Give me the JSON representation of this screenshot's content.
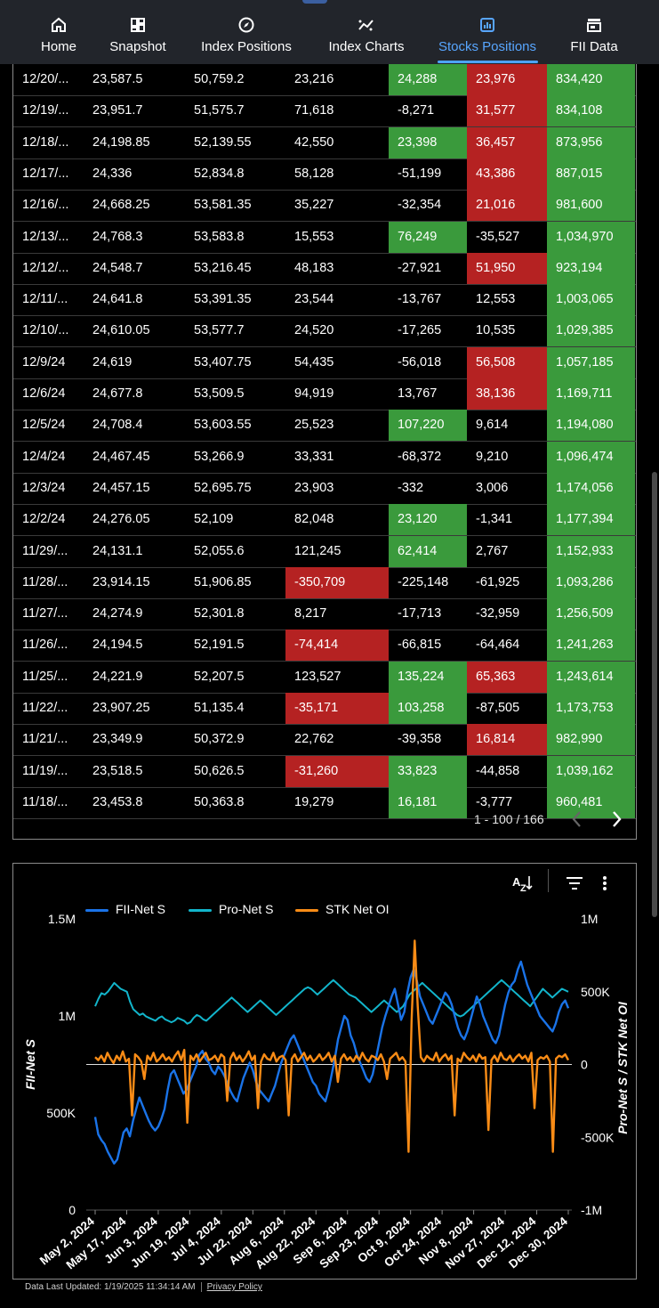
{
  "nav": [
    {
      "label": "Home",
      "icon": "home-icon"
    },
    {
      "label": "Snapshot",
      "icon": "dashboard-icon"
    },
    {
      "label": "Index Positions",
      "icon": "compass-icon"
    },
    {
      "label": "Index Charts",
      "icon": "trend-icon"
    },
    {
      "label": "Stocks Positions",
      "icon": "bar-chart-icon",
      "active": true
    },
    {
      "label": "FII Data",
      "icon": "store-icon"
    }
  ],
  "table": {
    "rows": [
      {
        "c": [
          "12/20/...",
          "23,587.5",
          "50,759.2",
          "23,216",
          "24,288",
          "23,976",
          "834,420"
        ],
        "bg": [
          "",
          "",
          "",
          "",
          "g",
          "r",
          "g"
        ]
      },
      {
        "c": [
          "12/19/...",
          "23,951.7",
          "51,575.7",
          "71,618",
          "-8,271",
          "31,577",
          "834,108"
        ],
        "bg": [
          "",
          "",
          "",
          "",
          "",
          "r",
          "g"
        ]
      },
      {
        "c": [
          "12/18/...",
          "24,198.85",
          "52,139.55",
          "42,550",
          "23,398",
          "36,457",
          "873,956"
        ],
        "bg": [
          "",
          "",
          "",
          "",
          "g",
          "r",
          "g"
        ]
      },
      {
        "c": [
          "12/17/...",
          "24,336",
          "52,834.8",
          "58,128",
          "-51,199",
          "43,386",
          "887,015"
        ],
        "bg": [
          "",
          "",
          "",
          "",
          "",
          "r",
          "g"
        ]
      },
      {
        "c": [
          "12/16/...",
          "24,668.25",
          "53,581.35",
          "35,227",
          "-32,354",
          "21,016",
          "981,600"
        ],
        "bg": [
          "",
          "",
          "",
          "",
          "",
          "r",
          "g"
        ]
      },
      {
        "c": [
          "12/13/...",
          "24,768.3",
          "53,583.8",
          "15,553",
          "76,249",
          "-35,527",
          "1,034,970"
        ],
        "bg": [
          "",
          "",
          "",
          "",
          "g",
          "",
          "g"
        ]
      },
      {
        "c": [
          "12/12/...",
          "24,548.7",
          "53,216.45",
          "48,183",
          "-27,921",
          "51,950",
          "923,194"
        ],
        "bg": [
          "",
          "",
          "",
          "",
          "",
          "r",
          "g"
        ]
      },
      {
        "c": [
          "12/11/...",
          "24,641.8",
          "53,391.35",
          "23,544",
          "-13,767",
          "12,553",
          "1,003,065"
        ],
        "bg": [
          "",
          "",
          "",
          "",
          "",
          "",
          "g"
        ]
      },
      {
        "c": [
          "12/10/...",
          "24,610.05",
          "53,577.7",
          "24,520",
          "-17,265",
          "10,535",
          "1,029,385"
        ],
        "bg": [
          "",
          "",
          "",
          "",
          "",
          "",
          "g"
        ]
      },
      {
        "c": [
          "12/9/24",
          "24,619",
          "53,407.75",
          "54,435",
          "-56,018",
          "56,508",
          "1,057,185"
        ],
        "bg": [
          "",
          "",
          "",
          "",
          "",
          "r",
          "g"
        ]
      },
      {
        "c": [
          "12/6/24",
          "24,677.8",
          "53,509.5",
          "94,919",
          "13,767",
          "38,136",
          "1,169,711"
        ],
        "bg": [
          "",
          "",
          "",
          "",
          "",
          "r",
          "g"
        ]
      },
      {
        "c": [
          "12/5/24",
          "24,708.4",
          "53,603.55",
          "25,523",
          "107,220",
          "9,614",
          "1,194,080"
        ],
        "bg": [
          "",
          "",
          "",
          "",
          "g",
          "",
          "g"
        ]
      },
      {
        "c": [
          "12/4/24",
          "24,467.45",
          "53,266.9",
          "33,331",
          "-68,372",
          "9,210",
          "1,096,474"
        ],
        "bg": [
          "",
          "",
          "",
          "",
          "",
          "",
          "g"
        ]
      },
      {
        "c": [
          "12/3/24",
          "24,457.15",
          "52,695.75",
          "23,903",
          "-332",
          "3,006",
          "1,174,056"
        ],
        "bg": [
          "",
          "",
          "",
          "",
          "",
          "",
          "g"
        ]
      },
      {
        "c": [
          "12/2/24",
          "24,276.05",
          "52,109",
          "82,048",
          "23,120",
          "-1,341",
          "1,177,394"
        ],
        "bg": [
          "",
          "",
          "",
          "",
          "g",
          "",
          "g"
        ]
      },
      {
        "c": [
          "11/29/...",
          "24,131.1",
          "52,055.6",
          "121,245",
          "62,414",
          "2,767",
          "1,152,933"
        ],
        "bg": [
          "",
          "",
          "",
          "",
          "g",
          "",
          "g"
        ]
      },
      {
        "c": [
          "11/28/...",
          "23,914.15",
          "51,906.85",
          "-350,709",
          "-225,148",
          "-61,925",
          "1,093,286"
        ],
        "bg": [
          "",
          "",
          "",
          "r",
          "",
          "",
          "g"
        ]
      },
      {
        "c": [
          "11/27/...",
          "24,274.9",
          "52,301.8",
          "8,217",
          "-17,713",
          "-32,959",
          "1,256,509"
        ],
        "bg": [
          "",
          "",
          "",
          "",
          "",
          "",
          "g"
        ]
      },
      {
        "c": [
          "11/26/...",
          "24,194.5",
          "52,191.5",
          "-74,414",
          "-66,815",
          "-64,464",
          "1,241,263"
        ],
        "bg": [
          "",
          "",
          "",
          "r",
          "",
          "",
          "g"
        ]
      },
      {
        "c": [
          "11/25/...",
          "24,221.9",
          "52,207.5",
          "123,527",
          "135,224",
          "65,363",
          "1,243,614"
        ],
        "bg": [
          "",
          "",
          "",
          "",
          "g",
          "r",
          "g"
        ]
      },
      {
        "c": [
          "11/22/...",
          "23,907.25",
          "51,135.4",
          "-35,171",
          "103,258",
          "-87,505",
          "1,173,753"
        ],
        "bg": [
          "",
          "",
          "",
          "r",
          "g",
          "",
          "g"
        ]
      },
      {
        "c": [
          "11/21/...",
          "23,349.9",
          "50,372.9",
          "22,762",
          "-39,358",
          "16,814",
          "982,990"
        ],
        "bg": [
          "",
          "",
          "",
          "",
          "",
          "r",
          "g"
        ]
      },
      {
        "c": [
          "11/19/...",
          "23,518.5",
          "50,626.5",
          "-31,260",
          "33,823",
          "-44,858",
          "1,039,162"
        ],
        "bg": [
          "",
          "",
          "",
          "r",
          "g",
          "",
          "g"
        ]
      },
      {
        "c": [
          "11/18/...",
          "23,453.8",
          "50,363.8",
          "19,279",
          "16,181",
          "-3,777",
          "960,481"
        ],
        "bg": [
          "",
          "",
          "",
          "",
          "g",
          "",
          "g"
        ]
      }
    ],
    "pager": "1 - 100 / 166",
    "green": "#3a9a3c",
    "red": "#b52222"
  },
  "chart_data": {
    "type": "line",
    "title": "",
    "series": [
      {
        "name": "FII-Net S",
        "color": "#1a73e8",
        "axis": "left"
      },
      {
        "name": "Pro-Net S",
        "color": "#12b5cb",
        "axis": "right"
      },
      {
        "name": "STK Net OI",
        "color": "#fa8c16",
        "axis": "right"
      }
    ],
    "y_left": {
      "label": "FII-Net S",
      "ticks": [
        "1.5M",
        "1M",
        "500K",
        "0"
      ],
      "range": [
        0,
        1500000
      ]
    },
    "y_right": {
      "label": "Pro-Net S / STK Net OI",
      "ticks": [
        "1M",
        "500K",
        "0",
        "-500K",
        "-1M"
      ],
      "range": [
        -1000000,
        1000000
      ]
    },
    "x_ticks": [
      "May 2, 2024",
      "May 17, 2024",
      "Jun 3, 2024",
      "Jun 19, 2024",
      "Jul 4, 2024",
      "Jul 22, 2024",
      "Aug 6, 2024",
      "Aug 22, 2024",
      "Sep 6, 2024",
      "Sep 23, 2024",
      "Oct 9, 2024",
      "Oct 24, 2024",
      "Nov 8, 2024",
      "Nov 27, 2024",
      "Dec 12, 2024",
      "Dec 30, 2024"
    ],
    "fii_net_s": [
      480000,
      390000,
      360000,
      340000,
      300000,
      270000,
      240000,
      260000,
      330000,
      400000,
      420000,
      380000,
      460000,
      520000,
      580000,
      540000,
      500000,
      460000,
      430000,
      410000,
      430000,
      470000,
      520000,
      620000,
      700000,
      720000,
      680000,
      640000,
      600000,
      620000,
      660000,
      700000,
      740000,
      800000,
      820000,
      780000,
      760000,
      720000,
      700000,
      740000,
      720000,
      690000,
      650000,
      610000,
      580000,
      560000,
      620000,
      680000,
      720000,
      760000,
      720000,
      660000,
      620000,
      600000,
      580000,
      560000,
      600000,
      640000,
      700000,
      760000,
      800000,
      840000,
      880000,
      900000,
      860000,
      820000,
      780000,
      740000,
      700000,
      660000,
      640000,
      600000,
      580000,
      560000,
      620000,
      700000,
      780000,
      880000,
      940000,
      1000000,
      980000,
      900000,
      860000,
      800000,
      760000,
      720000,
      680000,
      660000,
      700000,
      780000,
      860000,
      940000,
      1000000,
      1050000,
      1100000,
      1140000,
      1060000,
      980000,
      1020000,
      1120000,
      1200000,
      1240000,
      1180000,
      1100000,
      1060000,
      1020000,
      980000,
      960000,
      1000000,
      1040000,
      1080000,
      1120000,
      1100000,
      1060000,
      1000000,
      940000,
      900000,
      880000,
      920000,
      980000,
      1040000,
      1100000,
      1060000,
      1000000,
      960000,
      920000,
      880000,
      860000,
      900000,
      980000,
      1060000,
      1120000,
      1160000,
      1180000,
      1240000,
      1280000,
      1220000,
      1160000,
      1120000,
      1080000,
      1040000,
      1000000,
      980000,
      960000,
      940000,
      920000,
      960000,
      1020000,
      1060000,
      1080000,
      1040000
    ],
    "pro_net_s": [
      400000,
      450000,
      490000,
      480000,
      500000,
      530000,
      560000,
      540000,
      520000,
      510000,
      500000,
      430000,
      380000,
      360000,
      340000,
      350000,
      330000,
      320000,
      310000,
      300000,
      320000,
      330000,
      310000,
      300000,
      290000,
      300000,
      320000,
      310000,
      300000,
      280000,
      290000,
      320000,
      340000,
      330000,
      310000,
      300000,
      320000,
      340000,
      360000,
      380000,
      400000,
      420000,
      440000,
      460000,
      440000,
      420000,
      400000,
      380000,
      360000,
      380000,
      400000,
      420000,
      440000,
      420000,
      400000,
      380000,
      360000,
      340000,
      360000,
      380000,
      400000,
      420000,
      440000,
      460000,
      480000,
      500000,
      520000,
      530000,
      520000,
      500000,
      480000,
      500000,
      520000,
      540000,
      560000,
      580000,
      560000,
      540000,
      520000,
      500000,
      480000,
      470000,
      460000,
      440000,
      420000,
      400000,
      380000,
      360000,
      380000,
      400000,
      420000,
      440000,
      420000,
      400000,
      380000,
      360000,
      380000,
      400000,
      440000,
      480000,
      500000,
      520000,
      540000,
      560000,
      540000,
      520000,
      500000,
      480000,
      460000,
      440000,
      420000,
      400000,
      380000,
      360000,
      340000,
      330000,
      340000,
      360000,
      380000,
      400000,
      420000,
      440000,
      460000,
      480000,
      500000,
      520000,
      540000,
      560000,
      580000,
      560000,
      540000,
      520000,
      500000,
      480000,
      460000,
      440000,
      420000,
      400000,
      430000,
      460000,
      490000,
      520000,
      500000,
      480000,
      460000,
      480000,
      500000,
      520000,
      510000,
      500000
    ],
    "stk_net_oi": [
      50000,
      30000,
      60000,
      20000,
      80000,
      40000,
      10000,
      60000,
      30000,
      90000,
      20000,
      40000,
      -350000,
      70000,
      50000,
      20000,
      -100000,
      60000,
      30000,
      80000,
      20000,
      40000,
      70000,
      30000,
      50000,
      20000,
      60000,
      90000,
      30000,
      100000,
      -400000,
      60000,
      30000,
      70000,
      20000,
      50000,
      80000,
      30000,
      40000,
      60000,
      20000,
      70000,
      50000,
      -250000,
      40000,
      80000,
      30000,
      60000,
      20000,
      50000,
      90000,
      30000,
      60000,
      -300000,
      20000,
      70000,
      40000,
      30000,
      80000,
      20000,
      50000,
      60000,
      30000,
      -350000,
      40000,
      70000,
      20000,
      50000,
      80000,
      30000,
      60000,
      20000,
      40000,
      70000,
      30000,
      50000,
      80000,
      20000,
      60000,
      -120000,
      40000,
      70000,
      30000,
      50000,
      20000,
      60000,
      30000,
      80000,
      40000,
      20000,
      60000,
      50000,
      30000,
      70000,
      20000,
      -100000,
      40000,
      60000,
      80000,
      30000,
      50000,
      20000,
      -600000,
      300000,
      850000,
      400000,
      50000,
      20000,
      60000,
      40000,
      30000,
      80000,
      20000,
      50000,
      70000,
      30000,
      60000,
      -350000,
      40000,
      20000,
      80000,
      50000,
      30000,
      60000,
      20000,
      70000,
      40000,
      50000,
      -450000,
      30000,
      60000,
      20000,
      80000,
      40000,
      30000,
      60000,
      20000,
      50000,
      70000,
      40000,
      60000,
      20000,
      80000,
      -300000,
      30000,
      50000,
      40000,
      60000,
      20000,
      -600000,
      40000,
      60000,
      50000,
      70000,
      30000
    ]
  },
  "footer": {
    "updated": "Data Last Updated: 1/19/2025 11:34:14 AM",
    "privacy": "Privacy Policy"
  }
}
